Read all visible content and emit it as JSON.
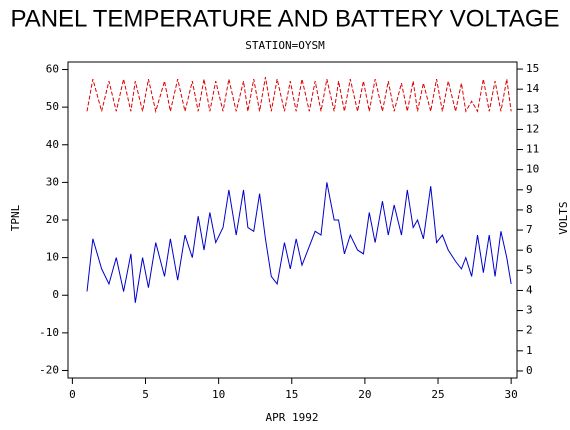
{
  "chart_data": {
    "type": "line",
    "title": "PANEL TEMPERATURE AND BATTERY VOLTAGE",
    "subtitle": "STATION=OYSM",
    "xlabel": "APR 1992",
    "ylabel": "TPNL",
    "y2label": "VOLTS",
    "x": [
      1,
      1.4,
      2,
      2.5,
      3,
      3.5,
      4,
      4.3,
      4.8,
      5.2,
      5.7,
      6.3,
      6.7,
      7.2,
      7.7,
      8.2,
      8.6,
      9,
      9.4,
      9.8,
      10.3,
      10.7,
      11.2,
      11.7,
      12,
      12.4,
      12.8,
      13.2,
      13.6,
      14,
      14.5,
      14.9,
      15.3,
      15.7,
      16.2,
      16.6,
      17,
      17.4,
      17.9,
      18.2,
      18.6,
      19,
      19.5,
      19.9,
      20.3,
      20.7,
      21.2,
      21.6,
      22,
      22.5,
      22.9,
      23.3,
      23.6,
      24,
      24.5,
      24.9,
      25.3,
      25.7,
      26.2,
      26.6,
      26.9,
      27.3,
      27.7,
      28.1,
      28.5,
      28.9,
      29.3,
      29.7,
      30
    ],
    "series": [
      {
        "name": "TPNL",
        "color": "#0000cc",
        "axis": "y",
        "dashed": false,
        "values": [
          1,
          15,
          7,
          3,
          10,
          1,
          11,
          -2,
          10,
          2,
          14,
          5,
          15,
          4,
          16,
          10,
          21,
          12,
          22,
          14,
          18,
          28,
          16,
          28,
          18,
          17,
          27,
          15,
          5,
          3,
          14,
          7,
          15,
          8,
          13,
          17,
          16,
          30,
          20,
          20,
          11,
          16,
          12,
          11,
          22,
          14,
          25,
          16,
          24,
          16,
          28,
          18,
          20,
          15,
          29,
          14,
          16,
          12,
          9,
          7,
          10,
          5,
          16,
          6,
          16,
          5,
          17,
          10,
          3
        ]
      },
      {
        "name": "VOLTS",
        "color": "#dd0000",
        "axis": "y2",
        "dashed": true,
        "values": [
          12.9,
          14.5,
          12.9,
          14.4,
          12.9,
          14.5,
          12.9,
          14.4,
          12.9,
          14.5,
          12.9,
          14.4,
          12.9,
          14.5,
          12.9,
          14.4,
          12.9,
          14.5,
          12.9,
          14.4,
          12.9,
          14.5,
          12.9,
          14.4,
          12.9,
          14.5,
          12.9,
          14.6,
          12.9,
          14.5,
          12.9,
          14.4,
          12.9,
          14.5,
          12.9,
          14.4,
          12.9,
          14.5,
          12.9,
          14.4,
          12.9,
          14.5,
          12.9,
          14.4,
          12.9,
          14.5,
          12.9,
          14.4,
          12.9,
          14.3,
          12.9,
          14.4,
          12.9,
          14.3,
          12.9,
          14.5,
          12.9,
          14.4,
          12.9,
          14.3,
          12.9,
          13.4,
          12.9,
          14.5,
          12.9,
          14.4,
          12.9,
          14.5,
          12.9
        ]
      }
    ],
    "xlim": [
      -0.3,
      30.4
    ],
    "xticks": [
      0,
      5,
      10,
      15,
      20,
      25,
      30
    ],
    "ylim": [
      -22,
      62
    ],
    "yticks": [
      -20,
      -10,
      0,
      10,
      20,
      30,
      40,
      50,
      60
    ],
    "y2lim": [
      -0.35,
      15.35
    ],
    "y2ticks": [
      0,
      1,
      2,
      3,
      4,
      5,
      6,
      7,
      8,
      9,
      10,
      11,
      12,
      13,
      14,
      15
    ]
  }
}
